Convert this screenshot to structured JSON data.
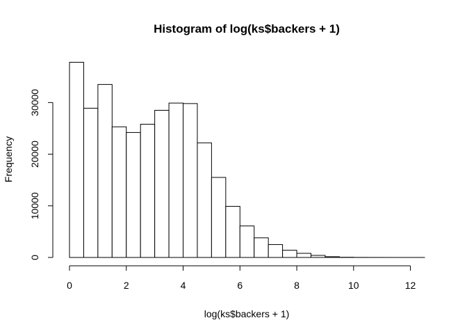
{
  "chart_data": {
    "type": "bar",
    "title": "Histogram of log(ks$backers + 1)",
    "xlabel": "log(ks$backers + 1)",
    "ylabel": "Frequency",
    "bin_width": 0.5,
    "x_start": 0,
    "xlim": [
      0,
      12.5
    ],
    "ylim": [
      0,
      38000
    ],
    "x_ticks": [
      0,
      2,
      4,
      6,
      8,
      10,
      12
    ],
    "y_ticks": [
      0,
      10000,
      20000,
      30000
    ],
    "values": [
      37800,
      28900,
      33500,
      25300,
      24200,
      25800,
      28500,
      29900,
      29800,
      22200,
      15500,
      9900,
      6100,
      3800,
      2500,
      1400,
      800,
      400,
      150,
      40,
      15,
      8,
      4,
      2,
      1
    ],
    "grid": false,
    "legend": "none",
    "colors": {
      "bar_fill": "#ffffff",
      "bar_stroke": "#000000"
    }
  }
}
